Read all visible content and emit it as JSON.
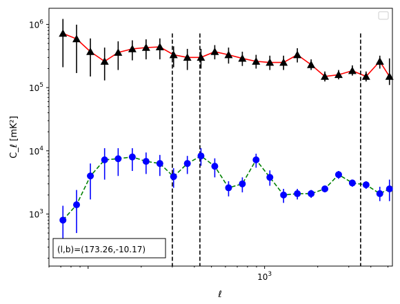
{
  "chart_data": {
    "type": "scatter",
    "title": "",
    "xlabel": "ℓ",
    "ylabel": "C_ℓ  [mK²]",
    "xscale": "log",
    "yscale": "log",
    "xlim": [
      60,
      5300
    ],
    "ylim": [
      150,
      1800000
    ],
    "x_tick_labels": [
      {
        "value": 1000,
        "label": "10^3"
      }
    ],
    "y_tick_labels": [
      {
        "value": 1000,
        "label": "10^3"
      },
      {
        "value": 10000,
        "label": "10^4"
      },
      {
        "value": 100000,
        "label": "10^5"
      },
      {
        "value": 1000000,
        "label": "10^6"
      }
    ],
    "grid": false,
    "legend": {
      "placement": "top-right",
      "entries": []
    },
    "vertical_lines": [
      300,
      430,
      3500
    ],
    "annotation": "(l,b)=(173.26,-10.17)",
    "series": [
      {
        "marker": "triangle",
        "marker_color": "#000000",
        "line_color": "#ff0000",
        "line_style": "solid",
        "x": [
          72,
          86,
          103,
          124,
          148,
          178,
          213,
          255,
          305,
          365,
          436,
          522,
          625,
          748,
          895,
          1071,
          1281,
          1533,
          1835,
          2195,
          2626,
          3142,
          3759,
          4497,
          5100
        ],
        "y": [
          720000,
          590000,
          370000,
          260000,
          360000,
          410000,
          430000,
          440000,
          330000,
          300000,
          300000,
          370000,
          330000,
          290000,
          260000,
          250000,
          250000,
          330000,
          230000,
          150000,
          160000,
          185000,
          150000,
          260000,
          150000
        ],
        "err_low": [
          510000,
          420000,
          220000,
          130000,
          170000,
          140000,
          150000,
          160000,
          120000,
          110000,
          100000,
          90000,
          90000,
          70000,
          60000,
          60000,
          60000,
          80000,
          40000,
          25000,
          25000,
          30000,
          25000,
          60000,
          40000
        ],
        "err_high": [
          500000,
          400000,
          230000,
          170000,
          180000,
          150000,
          150000,
          160000,
          120000,
          110000,
          110000,
          100000,
          100000,
          80000,
          70000,
          70000,
          70000,
          90000,
          50000,
          30000,
          30000,
          40000,
          30000,
          60000,
          140000
        ]
      },
      {
        "marker": "circle",
        "marker_color": "#0000ff",
        "line_color": "#008000",
        "line_style": "dashed",
        "x": [
          72,
          86,
          103,
          124,
          148,
          178,
          213,
          255,
          305,
          365,
          436,
          522,
          625,
          748,
          895,
          1071,
          1281,
          1533,
          1835,
          2195,
          2626,
          3142,
          3759,
          4497,
          5100
        ],
        "y": [
          800,
          1400,
          4000,
          7200,
          7500,
          8000,
          6800,
          6300,
          3900,
          6300,
          8300,
          5700,
          2600,
          3000,
          7200,
          3800,
          2000,
          2100,
          2100,
          2500,
          4200,
          3100,
          2900,
          2100,
          2500
        ],
        "err_low": [
          450,
          900,
          2300,
          3700,
          3500,
          3200,
          2500,
          2300,
          1300,
          2000,
          2500,
          1900,
          700,
          800,
          1800,
          1000,
          500,
          400,
          300,
          300,
          600,
          400,
          400,
          500,
          900
        ],
        "err_high": [
          550,
          1000,
          2300,
          3800,
          3500,
          3000,
          2600,
          2300,
          1400,
          2000,
          2700,
          1900,
          700,
          800,
          1800,
          1100,
          500,
          400,
          300,
          300,
          600,
          400,
          400,
          600,
          1000
        ]
      }
    ]
  }
}
